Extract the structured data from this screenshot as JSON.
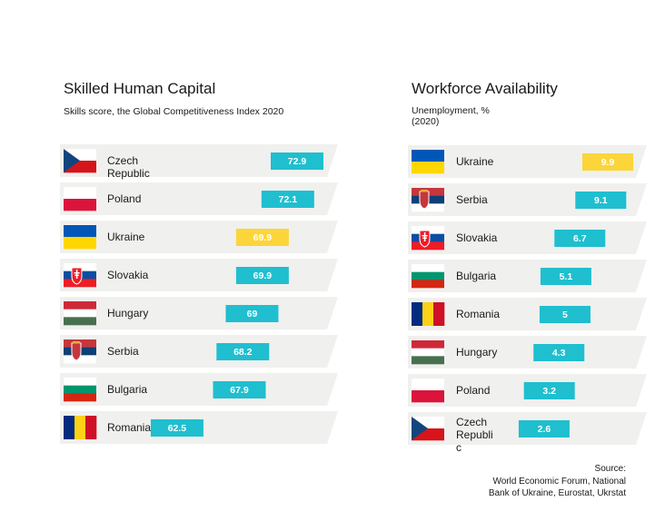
{
  "colors": {
    "bar": "#1fbfcf",
    "highlight": "#fbd53a",
    "row_bg": "#f0f0ee"
  },
  "source": {
    "label": "Source:",
    "line1": "World Economic Forum, National",
    "line2": "Bank of Ukraine, Eurostat, Ukrstat"
  },
  "chart_data": [
    {
      "type": "bar",
      "orientation": "horizontal",
      "title": "Skilled Human Capital",
      "subtitle": "Skills score, the Global Competitiveness Index 2020",
      "categories": [
        "Czech Republic",
        "Poland",
        "Ukraine",
        "Slovakia",
        "Hungary",
        "Serbia",
        "Bulgaria",
        "Romania"
      ],
      "label_lines": [
        [
          "Czech",
          "Republic"
        ],
        [
          "Poland"
        ],
        [
          "Ukraine"
        ],
        [
          "Slovakia"
        ],
        [
          "Hungary"
        ],
        [
          "Serbia"
        ],
        [
          "Bulgaria"
        ],
        [
          "Romania"
        ]
      ],
      "flags": [
        "flag-czech-icon",
        "flag-poland-icon",
        "flag-ukraine-icon",
        "flag-slovakia-icon",
        "flag-hungary-icon",
        "flag-serbia-icon",
        "flag-bulgaria-icon",
        "flag-romania-icon"
      ],
      "values": [
        72.9,
        72.1,
        69.9,
        69.9,
        69,
        68.2,
        67.9,
        62.5
      ],
      "value_labels": [
        "72.9",
        "72.1",
        "69.9",
        "69.9",
        "69",
        "68.2",
        "67.9",
        "62.5"
      ],
      "highlight": "Ukraine"
    },
    {
      "type": "bar",
      "orientation": "horizontal",
      "title": "Workforce Availability",
      "subtitle_lines": [
        "Unemployment, %",
        "(2020)"
      ],
      "categories": [
        "Ukraine",
        "Serbia",
        "Slovakia",
        "Bulgaria",
        "Romania",
        "Hungary",
        "Poland",
        "Czech Republic"
      ],
      "label_lines": [
        [
          "Ukraine"
        ],
        [
          "Serbia"
        ],
        [
          "Slovakia"
        ],
        [
          "Bulgaria"
        ],
        [
          "Romania"
        ],
        [
          "Hungary"
        ],
        [
          "Poland"
        ],
        [
          "Czech",
          "Republi",
          "c"
        ]
      ],
      "flags": [
        "flag-ukraine-icon",
        "flag-serbia-icon",
        "flag-slovakia-icon",
        "flag-bulgaria-icon",
        "flag-romania-icon",
        "flag-hungary-icon",
        "flag-poland-icon",
        "flag-czech-icon"
      ],
      "values": [
        9.9,
        9.1,
        6.7,
        5.1,
        5,
        4.3,
        3.2,
        2.6
      ],
      "value_labels": [
        "9.9",
        "9.1",
        "6.7",
        "5.1",
        "5",
        "4.3",
        "3.2",
        "2.6"
      ],
      "highlight": "Ukraine"
    }
  ]
}
